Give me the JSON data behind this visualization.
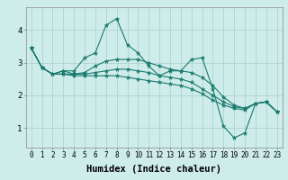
{
  "background_color": "#ceecea",
  "grid_color": "#aed4d0",
  "line_color": "#1a7a6e",
  "xlabel": "Humidex (Indice chaleur)",
  "xlabel_fontsize": 7.5,
  "yticks": [
    1,
    2,
    3,
    4
  ],
  "xticks": [
    0,
    1,
    2,
    3,
    4,
    5,
    6,
    7,
    8,
    9,
    10,
    11,
    12,
    13,
    14,
    15,
    16,
    17,
    18,
    19,
    20,
    21,
    22,
    23
  ],
  "ylim": [
    0.4,
    4.7
  ],
  "xlim": [
    -0.5,
    23.5
  ],
  "series": [
    [
      3.45,
      2.85,
      2.65,
      2.75,
      2.75,
      3.15,
      3.3,
      4.15,
      4.35,
      3.55,
      3.3,
      2.9,
      2.6,
      2.75,
      2.75,
      3.1,
      3.15,
      2.2,
      1.05,
      0.7,
      0.85,
      1.75,
      1.8,
      1.5
    ],
    [
      3.45,
      2.85,
      2.65,
      2.75,
      2.65,
      2.7,
      2.9,
      3.05,
      3.1,
      3.1,
      3.1,
      3.0,
      2.9,
      2.8,
      2.75,
      2.7,
      2.55,
      2.3,
      1.95,
      1.7,
      1.6,
      1.75,
      1.8,
      1.5
    ],
    [
      3.45,
      2.85,
      2.65,
      2.65,
      2.65,
      2.65,
      2.7,
      2.75,
      2.8,
      2.8,
      2.75,
      2.7,
      2.6,
      2.55,
      2.5,
      2.4,
      2.2,
      2.0,
      1.8,
      1.65,
      1.6,
      1.75,
      1.8,
      1.5
    ],
    [
      3.45,
      2.85,
      2.65,
      2.65,
      2.6,
      2.6,
      2.6,
      2.6,
      2.6,
      2.55,
      2.5,
      2.45,
      2.4,
      2.35,
      2.3,
      2.2,
      2.05,
      1.85,
      1.7,
      1.6,
      1.55,
      1.75,
      1.8,
      1.5
    ]
  ]
}
